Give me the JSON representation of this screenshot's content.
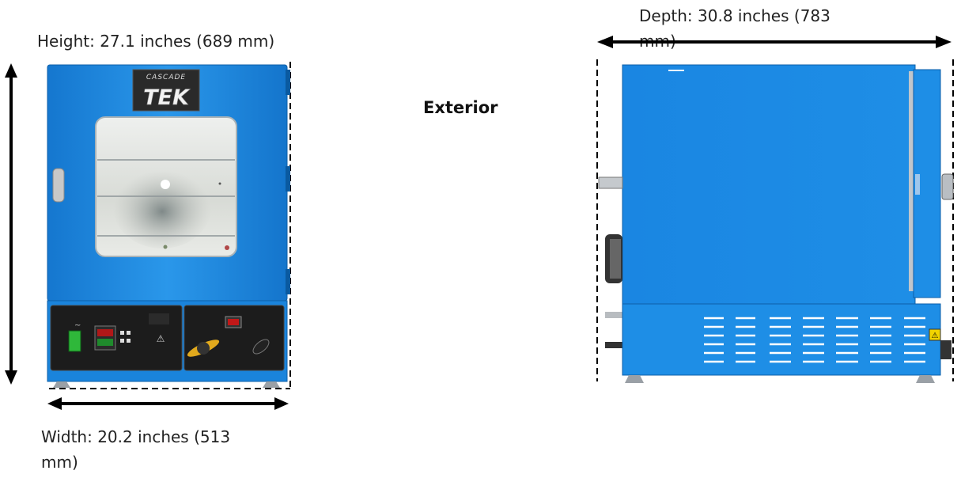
{
  "labels": {
    "height": "Height: 27.1 inches (689 mm)",
    "width_line1": "Width: 20.2 inches (513",
    "width_line2": "mm)",
    "depth_line1": "Depth: 30.8 inches (783",
    "depth_line2": "mm)",
    "section_title": "Exterior"
  },
  "brand": {
    "logo_top": "CASCADE",
    "logo_main": "TEK"
  },
  "colors": {
    "oven_blue": "#1e8ee6",
    "oven_blue_dark": "#0b6fc4",
    "panel_black": "#1b1b1b",
    "arrow": "#000000"
  }
}
